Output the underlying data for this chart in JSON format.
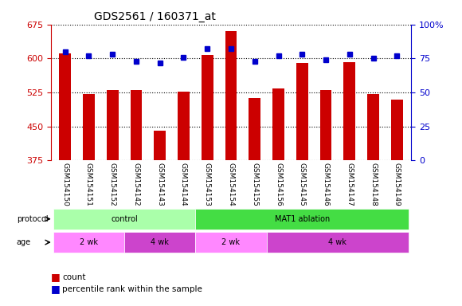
{
  "title": "GDS2561 / 160371_at",
  "samples": [
    "GSM154150",
    "GSM154151",
    "GSM154152",
    "GSM154142",
    "GSM154143",
    "GSM154144",
    "GSM154153",
    "GSM154154",
    "GSM154155",
    "GSM154156",
    "GSM154145",
    "GSM154146",
    "GSM154147",
    "GSM154148",
    "GSM154149"
  ],
  "counts": [
    612,
    521,
    530,
    530,
    440,
    527,
    608,
    660,
    513,
    534,
    590,
    530,
    592,
    522,
    510
  ],
  "percentile": [
    80,
    77,
    78,
    73,
    72,
    76,
    82,
    82,
    73,
    77,
    78,
    74,
    78,
    75,
    77
  ],
  "ylim_left": [
    375,
    675
  ],
  "ylim_right": [
    0,
    100
  ],
  "yticks_left": [
    375,
    450,
    525,
    600,
    675
  ],
  "yticks_right": [
    0,
    25,
    50,
    75,
    100
  ],
  "bar_color": "#cc0000",
  "dot_color": "#0000cc",
  "bg_color": "#ffffff",
  "axis_label_color_left": "#cc0000",
  "axis_label_color_right": "#0000cc",
  "age_groups": [
    {
      "label": "2 wk",
      "start": 0,
      "end": 3,
      "color": "#ff88ff"
    },
    {
      "label": "4 wk",
      "start": 3,
      "end": 6,
      "color": "#cc44cc"
    },
    {
      "label": "2 wk",
      "start": 6,
      "end": 9,
      "color": "#ff88ff"
    },
    {
      "label": "4 wk",
      "start": 9,
      "end": 15,
      "color": "#cc44cc"
    }
  ],
  "protocol_groups": [
    {
      "label": "control",
      "start": 0,
      "end": 6,
      "color": "#aaffaa"
    },
    {
      "label": "MAT1 ablation",
      "start": 6,
      "end": 15,
      "color": "#44dd44"
    }
  ],
  "bar_width": 0.5,
  "tick_area_color": "#cccccc"
}
